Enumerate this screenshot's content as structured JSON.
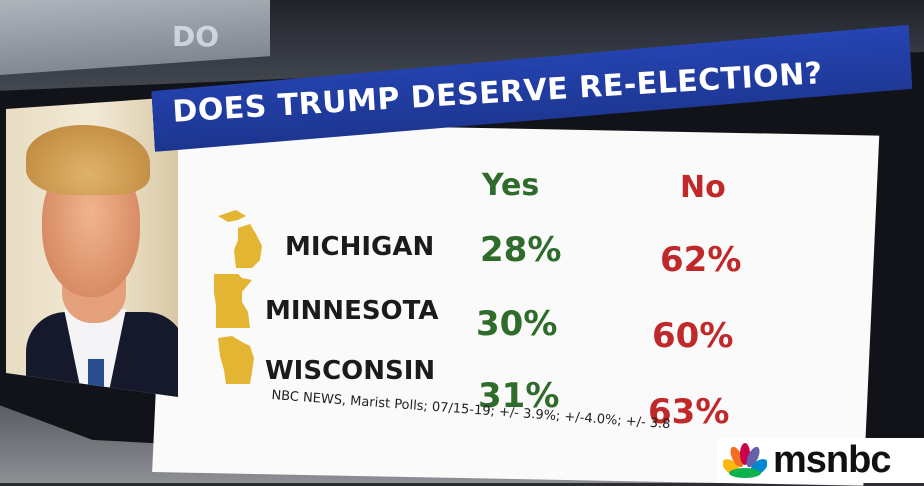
{
  "background_sign": {
    "text": "DO"
  },
  "graphic": {
    "title": "DOES TRUMP DESERVE RE-ELECTION?",
    "columns": {
      "yes": "Yes",
      "no": "No"
    },
    "rows": [
      {
        "state": "MICHIGAN",
        "yes": "28%",
        "no": "62%"
      },
      {
        "state": "MINNESOTA",
        "yes": "30%",
        "no": "60%"
      },
      {
        "state": "WISCONSIN",
        "yes": "31%",
        "no": "63%"
      }
    ],
    "source": "NBC NEWS, Marist Polls; 07/15-19; +/- 3.9%; +/-4.0%; +/- 3.8"
  },
  "logo": {
    "text": "msnbc"
  },
  "colors": {
    "title_bar": "#1f3ca3",
    "yes": "#2f6b2a",
    "no": "#c0282a",
    "state_shape": "#e3b533"
  },
  "icons": [
    "michigan-shape-icon",
    "minnesota-shape-icon",
    "wisconsin-shape-icon",
    "peacock-icon"
  ]
}
